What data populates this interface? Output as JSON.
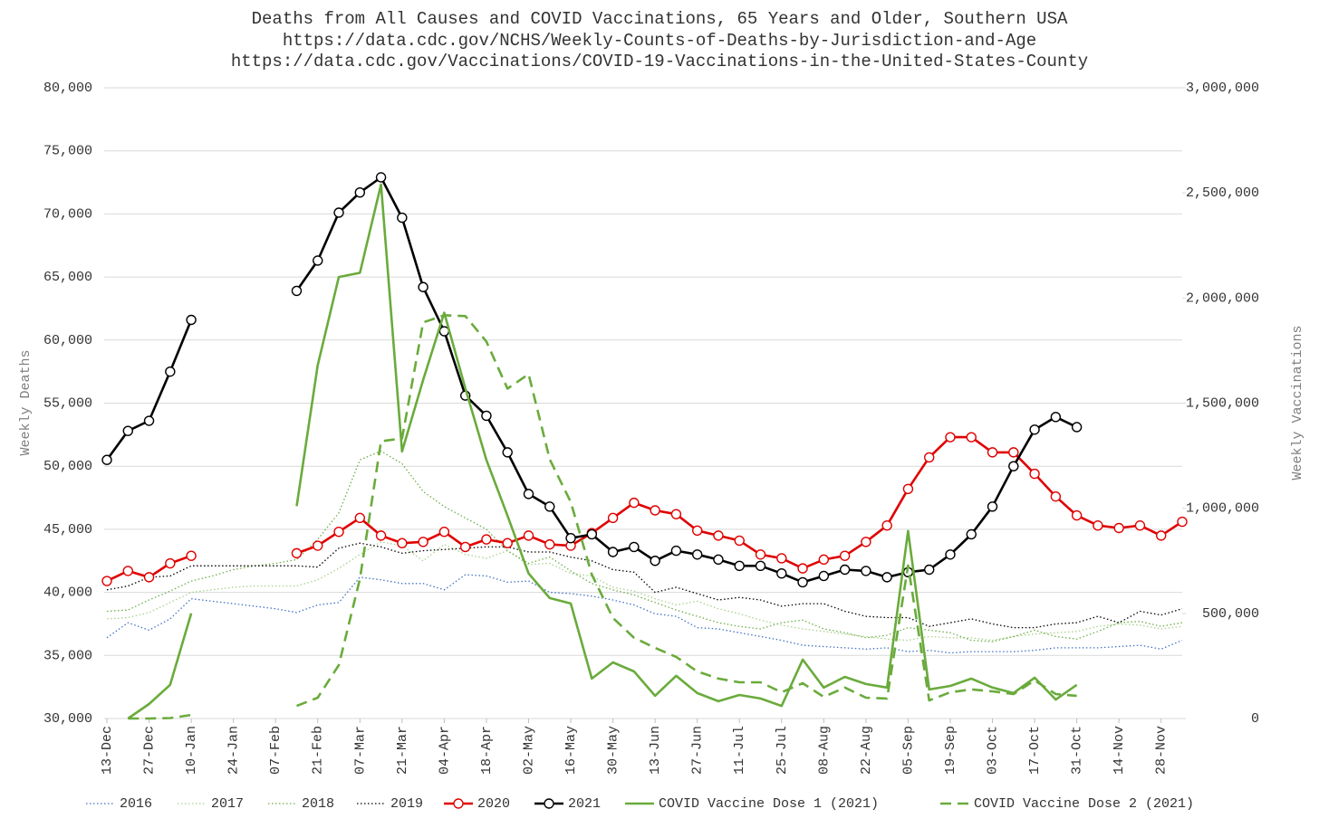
{
  "chart_data": {
    "type": "line",
    "title": "Deaths from All Causes and COVID Vaccinations, 65 Years and Older, Southern USA",
    "subtitle": [
      "https://data.cdc.gov/NCHS/Weekly-Counts-of-Deaths-by-Jurisdiction-and-Age",
      "https://data.cdc.gov/Vaccinations/COVID-19-Vaccinations-in-the-United-States-County"
    ],
    "ylabel": "Weekly Deaths",
    "y2label": "Weekly Vaccinations",
    "categories": [
      "13-Dec",
      null,
      "27-Dec",
      null,
      "10-Jan",
      null,
      "24-Jan",
      null,
      "07-Feb",
      null,
      "21-Feb",
      null,
      "07-Mar",
      null,
      "21-Mar",
      null,
      "04-Apr",
      null,
      "18-Apr",
      null,
      "02-May",
      null,
      "16-May",
      null,
      "30-May",
      null,
      "13-Jun",
      null,
      "27-Jun",
      null,
      "11-Jul",
      null,
      "25-Jul",
      null,
      "08-Aug",
      null,
      "22-Aug",
      null,
      "05-Sep",
      null,
      "19-Sep",
      null,
      "03-Oct",
      null,
      "17-Oct",
      null,
      "31-Oct",
      null,
      "14-Nov",
      null,
      "28-Nov",
      null
    ],
    "ylim": [
      30000,
      80000
    ],
    "yticks": [
      {
        "value": 30000,
        "label": "30,000"
      },
      {
        "value": 35000,
        "label": "35,000"
      },
      {
        "value": 40000,
        "label": "40,000"
      },
      {
        "value": 45000,
        "label": "45,000"
      },
      {
        "value": 50000,
        "label": "50,000"
      },
      {
        "value": 55000,
        "label": "55,000"
      },
      {
        "value": 60000,
        "label": "60,000"
      },
      {
        "value": 65000,
        "label": "65,000"
      },
      {
        "value": 70000,
        "label": "70,000"
      },
      {
        "value": 75000,
        "label": "75,000"
      },
      {
        "value": 80000,
        "label": "80,000"
      }
    ],
    "y2lim": [
      0,
      3000000
    ],
    "y2ticks": [
      0,
      {
        "value": 500000,
        "label": "500,000"
      },
      {
        "value": 1000000,
        "label": "1,000,000"
      },
      {
        "value": 1500000,
        "label": "1,500,000"
      },
      {
        "value": 2000000,
        "label": "2,000,000"
      },
      {
        "value": 2500000,
        "label": "2,500,000"
      },
      {
        "value": 3000000,
        "label": "3,000,000"
      }
    ],
    "grid": true,
    "series": [
      {
        "name": "2016",
        "color": "#4472c4",
        "style": "dotted",
        "values": [
          36400,
          37600,
          37000,
          37900,
          39500,
          39300,
          39100,
          38900,
          38700,
          38400,
          39000,
          39200,
          41200,
          41000,
          40700,
          40700,
          40200,
          41400,
          41300,
          40800,
          40900,
          40000,
          39900,
          39700,
          39400,
          39000,
          38300,
          38100,
          37200,
          37100,
          36800,
          36500,
          36200,
          35800,
          35700,
          35600,
          35500,
          35600,
          35300,
          35400,
          35200,
          35300,
          35300,
          35300,
          35400,
          35600,
          35600,
          35600,
          35700,
          35800,
          35500,
          36200
        ]
      },
      {
        "name": "2017",
        "color": "#a9d18e",
        "style": "dotted",
        "values": [
          37900,
          38000,
          38400,
          39200,
          40000,
          40200,
          40400,
          40500,
          40500,
          40500,
          41000,
          41900,
          43000,
          44000,
          43700,
          42500,
          43800,
          43000,
          42700,
          43300,
          42200,
          42300,
          41500,
          41300,
          40400,
          40100,
          39500,
          39000,
          39300,
          38700,
          38300,
          37800,
          37400,
          37100,
          36900,
          36700,
          36500,
          36300,
          36200,
          36500,
          36400,
          36400,
          36200,
          36500,
          36700,
          36800,
          36900,
          37300,
          37500,
          37400,
          37100,
          37300
        ]
      },
      {
        "name": "2018",
        "color": "#70ad47",
        "style": "dotted",
        "values": [
          38500,
          38600,
          39400,
          40100,
          40900,
          41300,
          41800,
          42100,
          42300,
          42600,
          44200,
          46300,
          50500,
          51200,
          50200,
          48000,
          46800,
          45900,
          45000,
          43300,
          42300,
          42800,
          41700,
          40700,
          40200,
          39800,
          39200,
          38600,
          38100,
          37600,
          37300,
          37100,
          37600,
          37800,
          37100,
          36800,
          36400,
          36600,
          37200,
          37000,
          36800,
          36200,
          36100,
          36500,
          37000,
          36500,
          36300,
          36900,
          37600,
          37700,
          37300,
          37600
        ]
      },
      {
        "name": "2019",
        "color": "#000000",
        "style": "dotted",
        "values": [
          40200,
          40500,
          41200,
          41300,
          42100,
          42100,
          42100,
          42100,
          42100,
          42100,
          42000,
          43500,
          43900,
          43600,
          43100,
          43300,
          43400,
          43500,
          43600,
          43600,
          43200,
          43200,
          42800,
          42500,
          41800,
          41600,
          40000,
          40400,
          39900,
          39400,
          39600,
          39400,
          38900,
          39100,
          39100,
          38500,
          38100,
          38000,
          38000,
          37300,
          37600,
          37900,
          37500,
          37200,
          37200,
          37500,
          37600,
          38100,
          37600,
          38500,
          38200,
          38700
        ]
      },
      {
        "name": "2020",
        "color": "#e00000",
        "style": "solid",
        "marker": true,
        "values": [
          40900,
          41700,
          41200,
          42300,
          42900,
          null,
          null,
          null,
          null,
          43100,
          43700,
          44800,
          45900,
          44500,
          43900,
          44000,
          44800,
          43600,
          44200,
          43900,
          44500,
          43800,
          43700,
          44700,
          45900,
          47100,
          46500,
          46200,
          44900,
          44500,
          44100,
          43000,
          42700,
          41900,
          42600,
          42900,
          44000,
          45300,
          48200,
          50700,
          52300,
          52300,
          51100,
          51100,
          49400,
          47600,
          46100,
          45300,
          45100,
          45300,
          44500,
          45600
        ]
      },
      {
        "name": "2021",
        "color": "#000000",
        "style": "solid",
        "marker": true,
        "values": [
          50500,
          52800,
          53600,
          57500,
          61600,
          null,
          null,
          null,
          null,
          63900,
          66300,
          70100,
          71700,
          72900,
          69700,
          64200,
          60700,
          55600,
          54000,
          51100,
          47800,
          46800,
          44300,
          44600,
          43200,
          43600,
          42500,
          43300,
          43000,
          42600,
          42100,
          42100,
          41500,
          40800,
          41300,
          41800,
          41700,
          41200,
          41600,
          41800,
          43000,
          44600,
          46800,
          50000,
          52900,
          53900,
          53100,
          null,
          null,
          null,
          null,
          null
        ]
      },
      {
        "name": "COVID Vaccine Dose 1 (2021)",
        "color": "#6aab3c",
        "style": "solid",
        "axis": "y2",
        "values": [
          null,
          0,
          69000,
          160000,
          500000,
          null,
          null,
          null,
          null,
          1010000,
          1680000,
          2100000,
          2120000,
          2540000,
          1270000,
          1610000,
          1930000,
          1570000,
          1230000,
          965000,
          690000,
          573000,
          547000,
          190000,
          267000,
          224000,
          108000,
          203000,
          121000,
          82000,
          112000,
          95000,
          60000,
          280000,
          147000,
          198000,
          164000,
          147000,
          892000,
          138000,
          155000,
          190000,
          147000,
          121000,
          194000,
          90000,
          160000,
          null,
          null,
          null,
          null,
          null
        ]
      },
      {
        "name": "COVID Vaccine Dose 2 (2021)",
        "color": "#6aab3c",
        "style": "dashed",
        "axis": "y2",
        "values": [
          null,
          0,
          0,
          2000,
          17000,
          null,
          null,
          null,
          null,
          60000,
          99000,
          254000,
          664000,
          1319000,
          1332000,
          1884000,
          1918000,
          1914000,
          1793000,
          1569000,
          1638000,
          1233000,
          1030000,
          685000,
          478000,
          384000,
          336000,
          293000,
          224000,
          190000,
          172000,
          172000,
          125000,
          168000,
          103000,
          147000,
          99000,
          95000,
          728000,
          86000,
          125000,
          138000,
          129000,
          116000,
          181000,
          116000,
          108000,
          null,
          null,
          null,
          null,
          null
        ]
      }
    ]
  }
}
